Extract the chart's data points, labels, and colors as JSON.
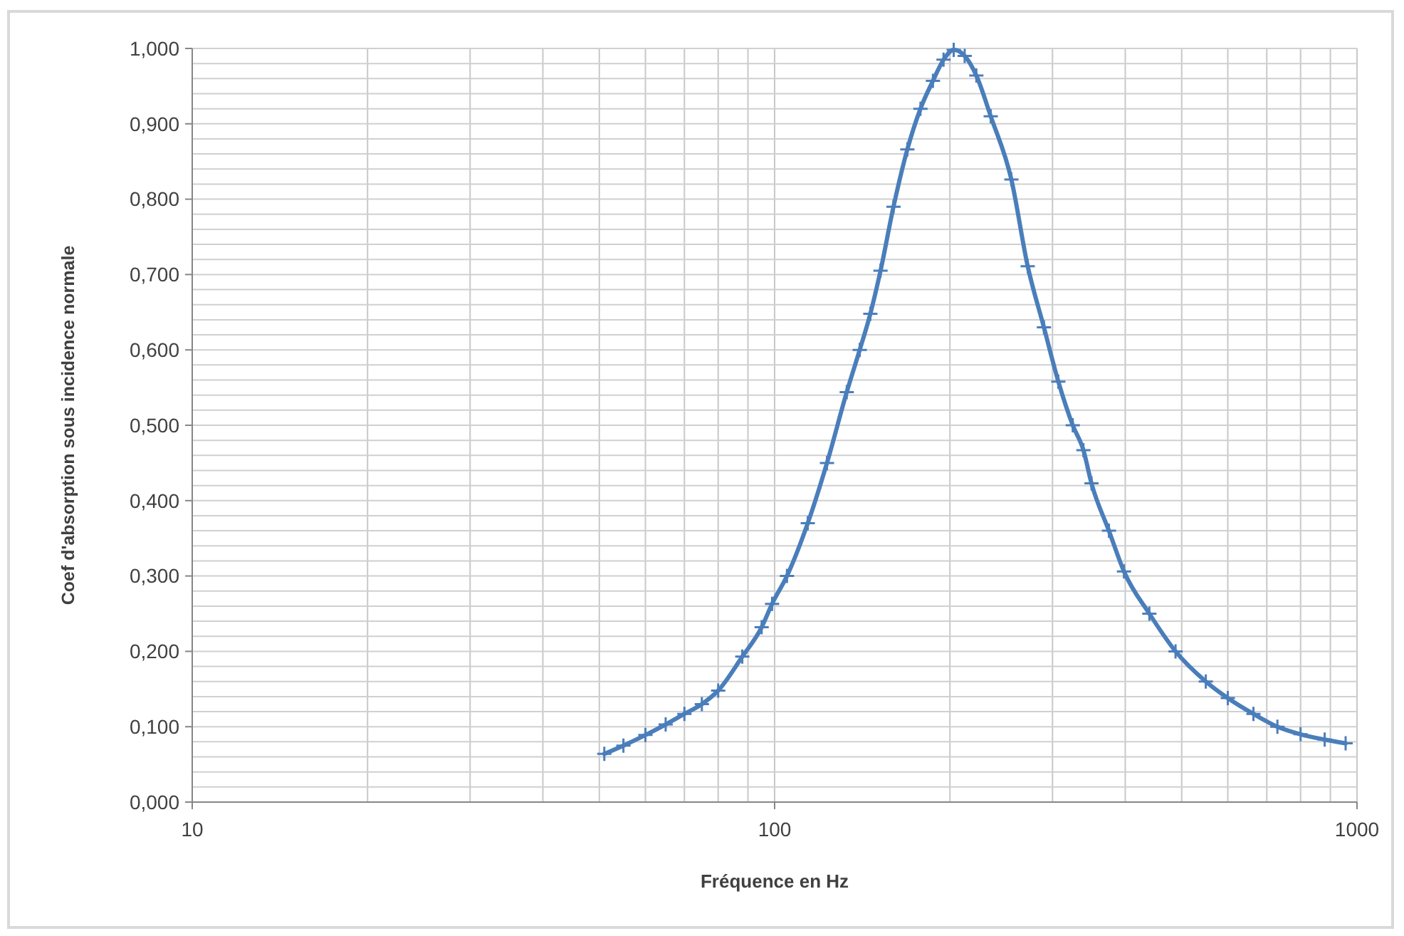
{
  "chart_data": {
    "type": "line",
    "xlabel": "Fréquence en Hz",
    "ylabel": "Coef d'absorption sous incidence normale",
    "log": "x",
    "grid": true,
    "marker": "cross",
    "line_style": "solid",
    "xlim": [
      10,
      1000
    ],
    "ylim": [
      0,
      1
    ],
    "xticks": [
      10,
      {
        "value": 20,
        "label": null
      },
      {
        "value": 30,
        "label": null
      },
      {
        "value": 40,
        "label": null
      },
      {
        "value": 50,
        "label": null
      },
      {
        "value": 60,
        "label": null
      },
      {
        "value": 70,
        "label": null
      },
      {
        "value": 80,
        "label": null
      },
      {
        "value": 90,
        "label": null
      },
      100,
      {
        "value": 200,
        "label": null
      },
      {
        "value": 300,
        "label": null
      },
      {
        "value": 400,
        "label": null
      },
      {
        "value": 500,
        "label": null
      },
      {
        "value": 600,
        "label": null
      },
      {
        "value": 700,
        "label": null
      },
      {
        "value": 800,
        "label": null
      },
      {
        "value": 900,
        "label": null
      },
      1000
    ],
    "yticks": [
      {
        "value": 0,
        "label": "0,000"
      },
      {
        "value": 0.02,
        "label": null
      },
      {
        "value": 0.04,
        "label": null
      },
      {
        "value": 0.06,
        "label": null
      },
      {
        "value": 0.08,
        "label": null
      },
      {
        "value": 0.1,
        "label": "0,100"
      },
      {
        "value": 0.12,
        "label": null
      },
      {
        "value": 0.14,
        "label": null
      },
      {
        "value": 0.16,
        "label": null
      },
      {
        "value": 0.18,
        "label": null
      },
      {
        "value": 0.2,
        "label": "0,200"
      },
      {
        "value": 0.22,
        "label": null
      },
      {
        "value": 0.24,
        "label": null
      },
      {
        "value": 0.26,
        "label": null
      },
      {
        "value": 0.28,
        "label": null
      },
      {
        "value": 0.3,
        "label": "0,300"
      },
      {
        "value": 0.32,
        "label": null
      },
      {
        "value": 0.34,
        "label": null
      },
      {
        "value": 0.36,
        "label": null
      },
      {
        "value": 0.38,
        "label": null
      },
      {
        "value": 0.4,
        "label": "0,400"
      },
      {
        "value": 0.42,
        "label": null
      },
      {
        "value": 0.44,
        "label": null
      },
      {
        "value": 0.46,
        "label": null
      },
      {
        "value": 0.48,
        "label": null
      },
      {
        "value": 0.5,
        "label": "0,500"
      },
      {
        "value": 0.52,
        "label": null
      },
      {
        "value": 0.54,
        "label": null
      },
      {
        "value": 0.56,
        "label": null
      },
      {
        "value": 0.58,
        "label": null
      },
      {
        "value": 0.6,
        "label": "0,600"
      },
      {
        "value": 0.62,
        "label": null
      },
      {
        "value": 0.64,
        "label": null
      },
      {
        "value": 0.66,
        "label": null
      },
      {
        "value": 0.68,
        "label": null
      },
      {
        "value": 0.7,
        "label": "0,700"
      },
      {
        "value": 0.72,
        "label": null
      },
      {
        "value": 0.74,
        "label": null
      },
      {
        "value": 0.76,
        "label": null
      },
      {
        "value": 0.78,
        "label": null
      },
      {
        "value": 0.8,
        "label": "0,800"
      },
      {
        "value": 0.82,
        "label": null
      },
      {
        "value": 0.84,
        "label": null
      },
      {
        "value": 0.86,
        "label": null
      },
      {
        "value": 0.88,
        "label": null
      },
      {
        "value": 0.9,
        "label": "0,900"
      },
      {
        "value": 0.92,
        "label": null
      },
      {
        "value": 0.94,
        "label": null
      },
      {
        "value": 0.96,
        "label": null
      },
      {
        "value": 0.98,
        "label": null
      },
      {
        "value": 1,
        "label": "1,000"
      }
    ],
    "series": [
      {
        "color": "#4a7ebb",
        "x": [
          51,
          55,
          60,
          65,
          70,
          75,
          80,
          88,
          95,
          99,
          105,
          114,
          123,
          133,
          140,
          146,
          152,
          160,
          169,
          178,
          187,
          195,
          203,
          212,
          222,
          235,
          255,
          272,
          290,
          307,
          325,
          339,
          350,
          375,
          398,
          440,
          488,
          550,
          600,
          664,
          730,
          800,
          880,
          956
        ],
        "values": [
          0.064,
          0.075,
          0.089,
          0.103,
          0.117,
          0.13,
          0.148,
          0.193,
          0.232,
          0.263,
          0.3,
          0.37,
          0.45,
          0.544,
          0.6,
          0.648,
          0.705,
          0.79,
          0.866,
          0.92,
          0.957,
          0.985,
          0.998,
          0.99,
          0.964,
          0.91,
          0.826,
          0.711,
          0.63,
          0.558,
          0.5,
          0.467,
          0.423,
          0.36,
          0.306,
          0.25,
          0.2,
          0.16,
          0.138,
          0.117,
          0.1,
          0.09,
          0.083,
          0.078
        ]
      }
    ]
  }
}
